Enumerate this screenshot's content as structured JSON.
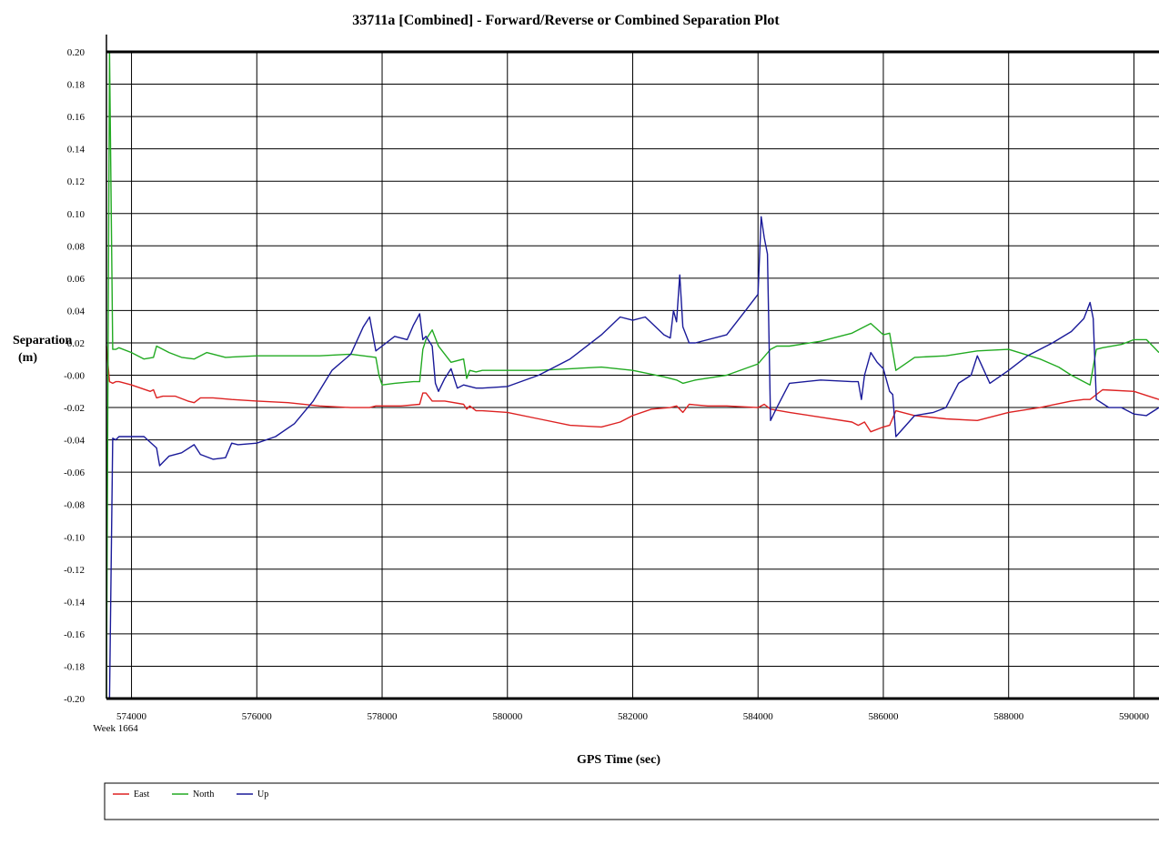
{
  "chart_data": {
    "type": "line",
    "title": "33711a [Combined] - Forward/Reverse or Combined Separation Plot",
    "xlabel": "GPS Time (sec)",
    "ylabel_line1": "Separation",
    "ylabel_line2": "(m)",
    "week_label": "Week 1664",
    "xlim": [
      573600,
      590400
    ],
    "ylim": [
      -0.2,
      0.2
    ],
    "grid": true,
    "legend_position": "bottom-left",
    "x_ticks": [
      574000,
      576000,
      578000,
      580000,
      582000,
      584000,
      586000,
      588000,
      590000
    ],
    "x_tick_labels": [
      "574000",
      "576000",
      "578000",
      "580000",
      "582000",
      "584000",
      "586000",
      "588000",
      "590000"
    ],
    "y_ticks": [
      0.2,
      0.18,
      0.16,
      0.14,
      0.12,
      0.1,
      0.08,
      0.06,
      0.04,
      0.02,
      0,
      -0.02,
      -0.04,
      -0.06,
      -0.08,
      -0.1,
      -0.12,
      -0.14,
      -0.16,
      -0.18,
      -0.2
    ],
    "y_tick_labels": [
      "0.20",
      "0.18",
      "0.16",
      "0.14",
      "0.12",
      "0.10",
      "0.08",
      "0.06",
      "0.04",
      "0.02",
      "-0.00",
      "-0.02",
      "-0.04",
      "-0.06",
      "-0.08",
      "-0.10",
      "-0.12",
      "-0.14",
      "-0.16",
      "-0.18",
      "-0.20"
    ],
    "series": [
      {
        "name": "East",
        "color": "#dd2222",
        "x": [
          573600,
          573650,
          573700,
          573750,
          573800,
          574000,
          574300,
          574350,
          574400,
          574500,
          574700,
          574900,
          575000,
          575100,
          575300,
          575600,
          576000,
          576500,
          577000,
          577500,
          577800,
          577900,
          578000,
          578300,
          578600,
          578650,
          578700,
          578800,
          579000,
          579300,
          579350,
          579400,
          579500,
          579600,
          580000,
          580500,
          581000,
          581500,
          581800,
          582000,
          582300,
          582600,
          582700,
          582800,
          582900,
          583200,
          583500,
          584000,
          584100,
          584200,
          584500,
          585000,
          585500,
          585600,
          585700,
          585800,
          586000,
          586100,
          586200,
          586500,
          587000,
          587500,
          588000,
          588500,
          589000,
          589200,
          589300,
          589500,
          590000,
          590400
        ],
        "y": [
          0.018,
          -0.004,
          -0.005,
          -0.004,
          -0.004,
          -0.006,
          -0.01,
          -0.009,
          -0.014,
          -0.013,
          -0.013,
          -0.016,
          -0.017,
          -0.014,
          -0.014,
          -0.015,
          -0.016,
          -0.017,
          -0.019,
          -0.02,
          -0.02,
          -0.019,
          -0.019,
          -0.019,
          -0.018,
          -0.011,
          -0.011,
          -0.016,
          -0.016,
          -0.018,
          -0.021,
          -0.019,
          -0.022,
          -0.022,
          -0.023,
          -0.027,
          -0.031,
          -0.032,
          -0.029,
          -0.025,
          -0.021,
          -0.02,
          -0.019,
          -0.023,
          -0.018,
          -0.019,
          -0.019,
          -0.02,
          -0.018,
          -0.021,
          -0.023,
          -0.026,
          -0.029,
          -0.031,
          -0.029,
          -0.035,
          -0.032,
          -0.031,
          -0.022,
          -0.025,
          -0.027,
          -0.028,
          -0.023,
          -0.02,
          -0.016,
          -0.015,
          -0.015,
          -0.009,
          -0.01,
          -0.015
        ]
      },
      {
        "name": "North",
        "color": "#22aa22",
        "x": [
          573600,
          573650,
          573700,
          573750,
          573800,
          574000,
          574200,
          574350,
          574400,
          574600,
          574800,
          575000,
          575200,
          575500,
          576000,
          576500,
          577000,
          577500,
          577900,
          577950,
          578000,
          578200,
          578500,
          578600,
          578650,
          578700,
          578800,
          578900,
          579100,
          579300,
          579350,
          579400,
          579500,
          579600,
          580000,
          580500,
          581000,
          581500,
          582000,
          582500,
          582700,
          582800,
          583000,
          583500,
          584000,
          584200,
          584300,
          584500,
          585000,
          585500,
          585800,
          586000,
          586100,
          586200,
          586500,
          587000,
          587500,
          588000,
          588500,
          588800,
          589000,
          589300,
          589400,
          589500,
          589800,
          590000,
          590200,
          590400
        ],
        "y": [
          -0.2,
          0.2,
          0.016,
          0.016,
          0.017,
          0.014,
          0.01,
          0.011,
          0.018,
          0.014,
          0.011,
          0.01,
          0.014,
          0.011,
          0.012,
          0.012,
          0.012,
          0.013,
          0.011,
          0.0,
          -0.006,
          -0.005,
          -0.004,
          -0.004,
          0.016,
          0.022,
          0.028,
          0.018,
          0.008,
          0.01,
          -0.002,
          0.003,
          0.002,
          0.003,
          0.003,
          0.003,
          0.004,
          0.005,
          0.003,
          -0.001,
          -0.003,
          -0.005,
          -0.003,
          0.0,
          0.007,
          0.016,
          0.018,
          0.018,
          0.021,
          0.026,
          0.032,
          0.025,
          0.026,
          0.003,
          0.011,
          0.012,
          0.015,
          0.016,
          0.01,
          0.005,
          0.0,
          -0.006,
          0.016,
          0.017,
          0.019,
          0.022,
          0.022,
          0.014
        ]
      },
      {
        "name": "Up",
        "color": "#1a1a99",
        "x": [
          573600,
          573650,
          573700,
          573750,
          573800,
          574000,
          574200,
          574400,
          574450,
          574600,
          574800,
          575000,
          575100,
          575300,
          575500,
          575600,
          575700,
          576000,
          576300,
          576600,
          576900,
          577200,
          577500,
          577700,
          577800,
          577900,
          578000,
          578200,
          578400,
          578500,
          578600,
          578650,
          578700,
          578800,
          578850,
          578900,
          579000,
          579100,
          579200,
          579300,
          579400,
          579500,
          579600,
          580000,
          580500,
          581000,
          581500,
          581800,
          582000,
          582200,
          582500,
          582600,
          582650,
          582700,
          582750,
          582800,
          582900,
          583000,
          583500,
          583800,
          584000,
          584050,
          584100,
          584150,
          584200,
          584300,
          584500,
          585000,
          585500,
          585600,
          585650,
          585700,
          585800,
          585900,
          586000,
          586100,
          586150,
          586200,
          586500,
          586800,
          587000,
          587200,
          587400,
          587500,
          587700,
          588000,
          588300,
          588500,
          588700,
          589000,
          589200,
          589300,
          589350,
          589400,
          589600,
          589800,
          590000,
          590200,
          590400
        ],
        "y": [
          -0.2,
          -0.2,
          -0.039,
          -0.04,
          -0.038,
          -0.038,
          -0.038,
          -0.045,
          -0.056,
          -0.05,
          -0.048,
          -0.043,
          -0.049,
          -0.052,
          -0.051,
          -0.042,
          -0.043,
          -0.042,
          -0.038,
          -0.03,
          -0.016,
          0.003,
          0.013,
          0.03,
          0.036,
          0.015,
          0.018,
          0.024,
          0.022,
          0.031,
          0.038,
          0.022,
          0.024,
          0.018,
          -0.005,
          -0.01,
          -0.002,
          0.004,
          -0.008,
          -0.006,
          -0.007,
          -0.008,
          -0.008,
          -0.007,
          0.0,
          0.01,
          0.025,
          0.036,
          0.034,
          0.036,
          0.025,
          0.023,
          0.04,
          0.033,
          0.062,
          0.03,
          0.02,
          0.02,
          0.025,
          0.04,
          0.05,
          0.098,
          0.085,
          0.075,
          -0.028,
          -0.02,
          -0.005,
          -0.003,
          -0.004,
          -0.004,
          -0.015,
          0.0,
          0.014,
          0.008,
          0.004,
          -0.01,
          -0.012,
          -0.038,
          -0.025,
          -0.023,
          -0.02,
          -0.005,
          0.0,
          0.012,
          -0.005,
          0.003,
          0.012,
          0.016,
          0.02,
          0.027,
          0.035,
          0.045,
          0.035,
          -0.015,
          -0.02,
          -0.02,
          -0.024,
          -0.025,
          -0.02
        ]
      }
    ]
  }
}
